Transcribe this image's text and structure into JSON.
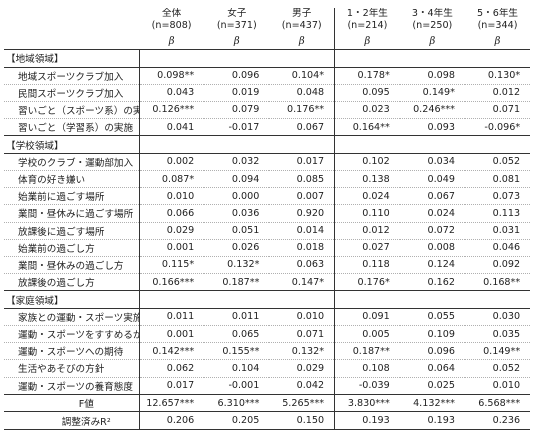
{
  "columns": [
    {
      "name": "全体",
      "n": "(n=808)"
    },
    {
      "name": "女子",
      "n": "(n=371)"
    },
    {
      "name": "男子",
      "n": "(n=437)"
    },
    {
      "name": "1・2年生",
      "n": "(n=214)"
    },
    {
      "name": "3・4年生",
      "n": "(n=250)"
    },
    {
      "name": "5・6年生",
      "n": "(n=344)"
    }
  ],
  "beta": "β",
  "sections": [
    {
      "title": "【地域領域】",
      "rows": [
        {
          "label": "地域スポーツクラブ加入",
          "values": [
            "0.098**",
            "0.096",
            "0.104*",
            "0.178*",
            "0.098",
            "0.130*"
          ]
        },
        {
          "label": "民間スポーツクラブ加入",
          "values": [
            "0.043",
            "0.019",
            "0.048",
            "0.095",
            "0.149*",
            "0.012"
          ]
        },
        {
          "label": "習いごと（スポーツ系）の実施",
          "values": [
            "0.126***",
            "0.079",
            "0.176**",
            "0.023",
            "0.246***",
            "0.071"
          ]
        },
        {
          "label": "習いごと（学習系）の実施",
          "values": [
            "0.041",
            "-0.017",
            "0.067",
            "0.164**",
            "0.093",
            "-0.096*"
          ]
        }
      ]
    },
    {
      "title": "【学校領域】",
      "rows": [
        {
          "label": "学校のクラブ・運動部加入",
          "values": [
            "0.002",
            "0.032",
            "0.017",
            "0.102",
            "0.034",
            "0.052"
          ]
        },
        {
          "label": "体育の好き嫌い",
          "values": [
            "0.087*",
            "0.094",
            "0.085",
            "0.138",
            "0.049",
            "0.081"
          ]
        },
        {
          "label": "始業前に過ごす場所",
          "values": [
            "0.010",
            "0.000",
            "0.007",
            "0.024",
            "0.067",
            "0.073"
          ]
        },
        {
          "label": "業間・昼休みに過ごす場所",
          "values": [
            "0.066",
            "0.036",
            "0.920",
            "0.110",
            "0.024",
            "0.113"
          ]
        },
        {
          "label": "放課後に過ごす場所",
          "values": [
            "0.029",
            "0.051",
            "0.014",
            "0.012",
            "0.072",
            "0.031"
          ]
        },
        {
          "label": "始業前の過ごし方",
          "values": [
            "0.001",
            "0.026",
            "0.018",
            "0.027",
            "0.008",
            "0.046"
          ]
        },
        {
          "label": "業間・昼休みの過ごし方",
          "values": [
            "0.115*",
            "0.132*",
            "0.063",
            "0.118",
            "0.124",
            "0.092"
          ]
        },
        {
          "label": "放課後の過ごし方",
          "values": [
            "0.166***",
            "0.187**",
            "0.147*",
            "0.176*",
            "0.162",
            "0.168**"
          ]
        }
      ]
    },
    {
      "title": "【家庭領域】",
      "rows": [
        {
          "label": "家族との運動・スポーツ実施",
          "values": [
            "0.011",
            "0.011",
            "0.010",
            "0.091",
            "0.055",
            "0.030"
          ]
        },
        {
          "label": "運動・スポーツをすすめるか",
          "values": [
            "0.001",
            "0.065",
            "0.071",
            "0.005",
            "0.109",
            "0.035"
          ]
        },
        {
          "label": "運動・スポーツへの期待",
          "values": [
            "0.142***",
            "0.155**",
            "0.132*",
            "0.187**",
            "0.096",
            "0.149**"
          ]
        },
        {
          "label": "生活やあそびの方針",
          "values": [
            "0.062",
            "0.104",
            "0.029",
            "0.108",
            "0.064",
            "0.052"
          ]
        },
        {
          "label": "運動・スポーツの養育態度",
          "values": [
            "0.017",
            "-0.001",
            "0.042",
            "-0.039",
            "0.025",
            "0.010"
          ]
        }
      ]
    }
  ],
  "footer": [
    {
      "label": "F値",
      "values": [
        "12.657***",
        "6.310***",
        "5.265***",
        "3.830***",
        "4.132***",
        "6.568***"
      ]
    },
    {
      "label": "調整済みR²",
      "values": [
        "0.206",
        "0.205",
        "0.150",
        "0.193",
        "0.193",
        "0.236"
      ]
    }
  ]
}
